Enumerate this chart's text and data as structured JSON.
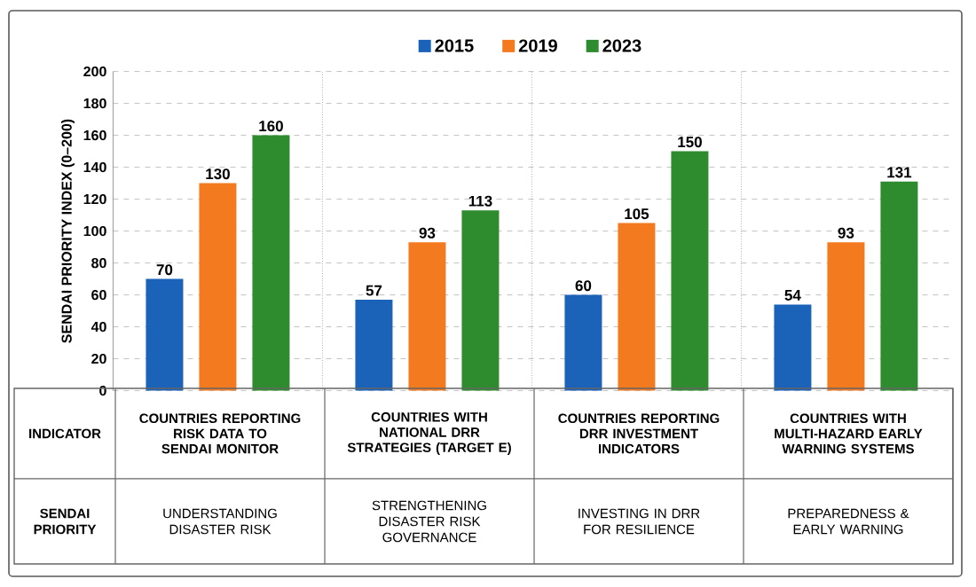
{
  "chart_data": {
    "type": "bar",
    "ylabel": "SENDAI PRIORITY INDEX (0–200)",
    "categories": [
      "COUNTRIES REPORTING RISK DATA TO SENDAI MONITOR",
      "COUNTRIES WITH NATIONAL DRR STRATEGIES (TARGET E)",
      "COUNTRIES REPORTING DRR INVESTMENT INDICATORS",
      "COUNTRIES WITH MULTI-HAZARD EARLY WARNING SYSTEMS"
    ],
    "series": [
      {
        "name": "2015",
        "color": "#1a63b8",
        "values": [
          70,
          57,
          60,
          54
        ]
      },
      {
        "name": "2019",
        "color": "#f47a20",
        "values": [
          130,
          93,
          105,
          93
        ]
      },
      {
        "name": "2023",
        "color": "#2e8b2e",
        "values": [
          160,
          113,
          150,
          131
        ]
      }
    ],
    "ylim": [
      0,
      200
    ],
    "yticks": [
      0,
      20,
      40,
      60,
      80,
      100,
      120,
      140,
      160,
      180,
      200
    ],
    "grid": "y",
    "legend": "top",
    "data_labels": true,
    "annotations": [
      "INDICATOR",
      "SENDAI PRIORITY",
      "UNDERSTANDING DISASTER RISK",
      "STRENGTHENING DISASTER RISK GOVERNANCE",
      "INVESTING IN DRR FOR RESILIENCE",
      "PREPAREDNESS & EARLY WARNING"
    ]
  }
}
